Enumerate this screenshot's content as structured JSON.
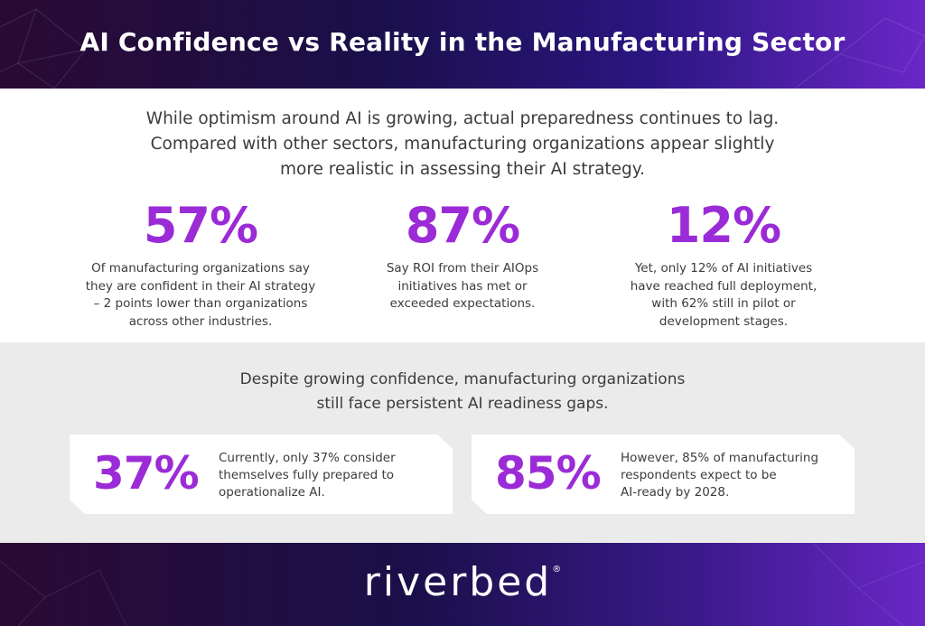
{
  "header": {
    "title": "AI Confidence vs Reality in the Manufacturing Sector"
  },
  "intro": {
    "line1": "While optimism around AI is growing, actual preparedness continues to lag.",
    "line2": "Compared with other sectors, manufacturing organizations appear slightly",
    "line3": "more realistic in assessing their AI strategy."
  },
  "stats": [
    {
      "value": "57%",
      "lines": [
        "Of manufacturing organizations say",
        "they are confident in their AI strategy",
        "– 2 points lower than organizations",
        "across other industries."
      ]
    },
    {
      "value": "87%",
      "lines": [
        "Say ROI from their AIOps",
        "initiatives has met or",
        "exceeded expectations."
      ]
    },
    {
      "value": "12%",
      "lines": [
        "Yet, only 12% of AI initiatives",
        "have reached full deployment,",
        "with 62% still in pilot or",
        "development stages."
      ]
    }
  ],
  "readiness": {
    "heading_line1": "Despite growing confidence, manufacturing organizations",
    "heading_line2": "still face persistent AI readiness gaps.",
    "cards": [
      {
        "value": "37%",
        "lines": [
          "Currently, only 37% consider",
          "themselves fully prepared to",
          "operationalize AI."
        ]
      },
      {
        "value": "85%",
        "lines": [
          "However, 85% of manufacturing",
          "respondents expect to be",
          "AI-ready by 2028."
        ]
      }
    ]
  },
  "footer": {
    "logo_text": "riverbed",
    "registered_mark": "®"
  },
  "colors": {
    "accent": "#9b2bd6",
    "text": "#3c3c3c",
    "grey_band": "#ebebeb",
    "header_dark": "#1a0f4a",
    "header_light": "#6a27c6"
  }
}
